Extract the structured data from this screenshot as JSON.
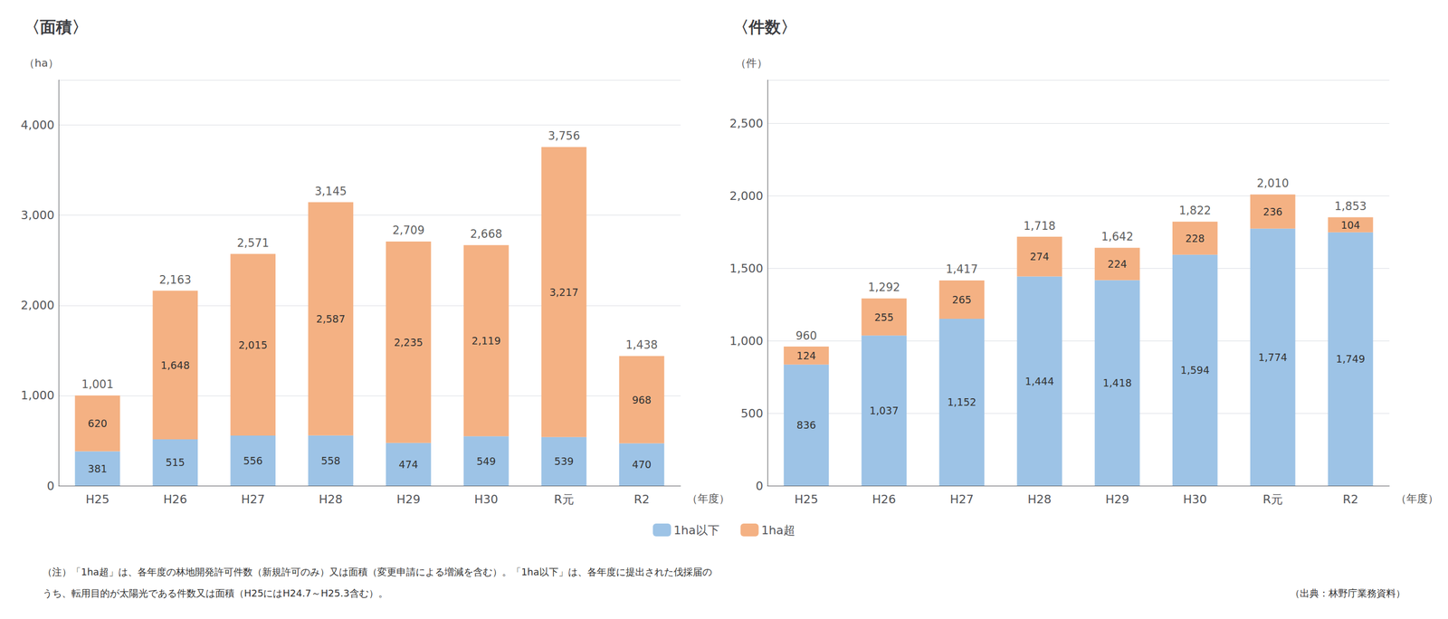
{
  "chart_data": [
    {
      "type": "bar",
      "stacked": true,
      "data_labels": true,
      "grid": true,
      "legend": "bottom",
      "title": "〈面積〉",
      "ylabel": "（ha）",
      "xlabel": "（年度）",
      "categories": [
        "H25",
        "H26",
        "H27",
        "H28",
        "H29",
        "H30",
        "R元",
        "R2"
      ],
      "series": [
        {
          "name": "1ha以下",
          "color": "#9DC3E6",
          "values": [
            381,
            515,
            556,
            558,
            474,
            549,
            539,
            470
          ],
          "value_labels": [
            "381",
            "515",
            "556",
            "558",
            "474",
            "549",
            "539",
            "470"
          ]
        },
        {
          "name": "1ha超",
          "color": "#F4B183",
          "values": [
            620,
            1648,
            2015,
            2587,
            2235,
            2119,
            3217,
            968
          ],
          "value_labels": [
            "620",
            "1,648",
            "2,015",
            "2,587",
            "2,235",
            "2,119",
            "3,217",
            "968"
          ]
        }
      ],
      "totals": [
        1001,
        2163,
        2571,
        3145,
        2709,
        2668,
        3756,
        1438
      ],
      "total_labels": [
        "1,001",
        "2,163",
        "2,571",
        "3,145",
        "2,709",
        "2,668",
        "3,756",
        "1,438"
      ],
      "ylim": [
        0,
        4500
      ],
      "yticks": [
        0,
        {
          "value": 1000,
          "label": "1,000"
        },
        {
          "value": 2000,
          "label": "2,000"
        },
        {
          "value": 3000,
          "label": "3,000"
        },
        {
          "value": 4000,
          "label": "4,000"
        }
      ]
    },
    {
      "type": "bar",
      "stacked": true,
      "data_labels": true,
      "grid": true,
      "title": "〈件数〉",
      "ylabel": "（件）",
      "xlabel": "（年度）",
      "categories": [
        "H25",
        "H26",
        "H27",
        "H28",
        "H29",
        "H30",
        "R元",
        "R2"
      ],
      "series": [
        {
          "name": "1ha以下",
          "color": "#9DC3E6",
          "values": [
            836,
            1037,
            1152,
            1444,
            1418,
            1594,
            1774,
            1749
          ],
          "value_labels": [
            "836",
            "1,037",
            "1,152",
            "1,444",
            "1,418",
            "1,594",
            "1,774",
            "1,749"
          ]
        },
        {
          "name": "1ha超",
          "color": "#F4B183",
          "values": [
            124,
            255,
            265,
            274,
            224,
            228,
            236,
            104
          ],
          "value_labels": [
            "124",
            "255",
            "265",
            "274",
            "224",
            "228",
            "236",
            "104"
          ]
        }
      ],
      "totals": [
        960,
        1292,
        1417,
        1718,
        1642,
        1822,
        2010,
        1853
      ],
      "total_labels": [
        "960",
        "1,292",
        "1,417",
        "1,718",
        "1,642",
        "1,822",
        "2,010",
        "1,853"
      ],
      "ylim": [
        0,
        2800
      ],
      "yticks": [
        0,
        500,
        {
          "value": 1000,
          "label": "1,000"
        },
        {
          "value": 1500,
          "label": "1,500"
        },
        {
          "value": 2000,
          "label": "2,000"
        },
        {
          "value": 2500,
          "label": "2,500"
        }
      ]
    }
  ],
  "notes": [
    "（注）「1ha超」は、各年度の林地開発許可件数（新規許可のみ）又は面積（変更申請による増減を含む）。「1ha以下」は、各年度に提出された伐採届の",
    "うち、転用目的が太陽光である件数又は面積（H25にはH24.7～H25.3含む）。"
  ],
  "source": "（出典：林野庁業務資料）"
}
